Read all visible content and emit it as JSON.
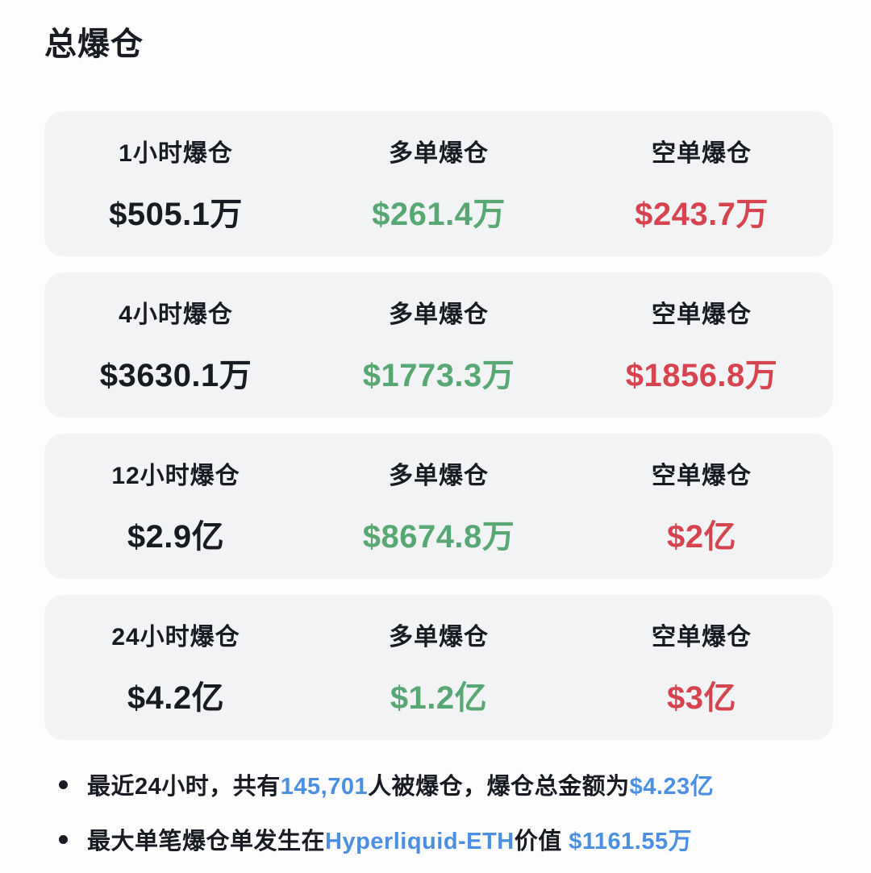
{
  "page": {
    "title": "总爆仓"
  },
  "colors": {
    "dark": "#191b22",
    "green": "#57a873",
    "red": "#d6454f",
    "blue": "#4a8fe2",
    "card_bg": "#f2f3f5"
  },
  "cards": [
    {
      "columns": [
        {
          "label": "1小时爆仓",
          "value": "$505.1万"
        },
        {
          "label": "多单爆仓",
          "value": "$261.4万"
        },
        {
          "label": "空单爆仓",
          "value": "$243.7万"
        }
      ]
    },
    {
      "columns": [
        {
          "label": "4小时爆仓",
          "value": "$3630.1万"
        },
        {
          "label": "多单爆仓",
          "value": "$1773.3万"
        },
        {
          "label": "空单爆仓",
          "value": "$1856.8万"
        }
      ]
    },
    {
      "columns": [
        {
          "label": "12小时爆仓",
          "value": "$2.9亿"
        },
        {
          "label": "多单爆仓",
          "value": "$8674.8万"
        },
        {
          "label": "空单爆仓",
          "value": "$2亿"
        }
      ]
    },
    {
      "columns": [
        {
          "label": "24小时爆仓",
          "value": "$4.2亿"
        },
        {
          "label": "多单爆仓",
          "value": "$1.2亿"
        },
        {
          "label": "空单爆仓",
          "value": "$3亿"
        }
      ]
    }
  ],
  "notes": [
    {
      "segments": [
        {
          "text": "最近24小时，共有"
        },
        {
          "text": "145,701"
        },
        {
          "text": "人被爆仓，爆仓总金额为"
        },
        {
          "text": "$4.23亿"
        }
      ]
    },
    {
      "segments": [
        {
          "text": "最大单笔爆仓单发生在"
        },
        {
          "text": "Hyperliquid-ETH"
        },
        {
          "text": "价值 "
        },
        {
          "text": "$1161.55万"
        }
      ]
    }
  ]
}
